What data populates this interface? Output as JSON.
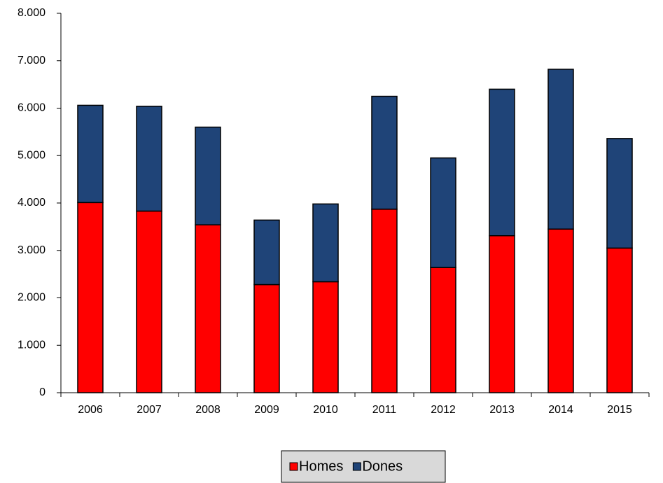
{
  "chart_data": {
    "type": "stacked_bar",
    "categories": [
      "2006",
      "2007",
      "2008",
      "2009",
      "2010",
      "2011",
      "2012",
      "2013",
      "2014",
      "2015"
    ],
    "series": [
      {
        "name": "Homes",
        "color": "#ff0000",
        "values": [
          4010,
          3830,
          3540,
          2280,
          2340,
          3870,
          2640,
          3310,
          3450,
          3050
        ]
      },
      {
        "name": "Dones",
        "color": "#1f4478",
        "values": [
          2050,
          2210,
          2060,
          1360,
          1640,
          2380,
          2310,
          3090,
          3370,
          2310
        ]
      }
    ],
    "ylim": [
      0,
      8000
    ],
    "yticks": [
      0,
      {
        "value": 1000,
        "label": "1.000"
      },
      {
        "value": 2000,
        "label": "2.000"
      },
      {
        "value": 3000,
        "label": "3.000"
      },
      {
        "value": 4000,
        "label": "4.000"
      },
      {
        "value": 5000,
        "label": "5.000"
      },
      {
        "value": 6000,
        "label": "6.000"
      },
      {
        "value": 7000,
        "label": "7.000"
      },
      {
        "value": 8000,
        "label": "8.000"
      }
    ],
    "grid": false,
    "legend": "bottom"
  }
}
